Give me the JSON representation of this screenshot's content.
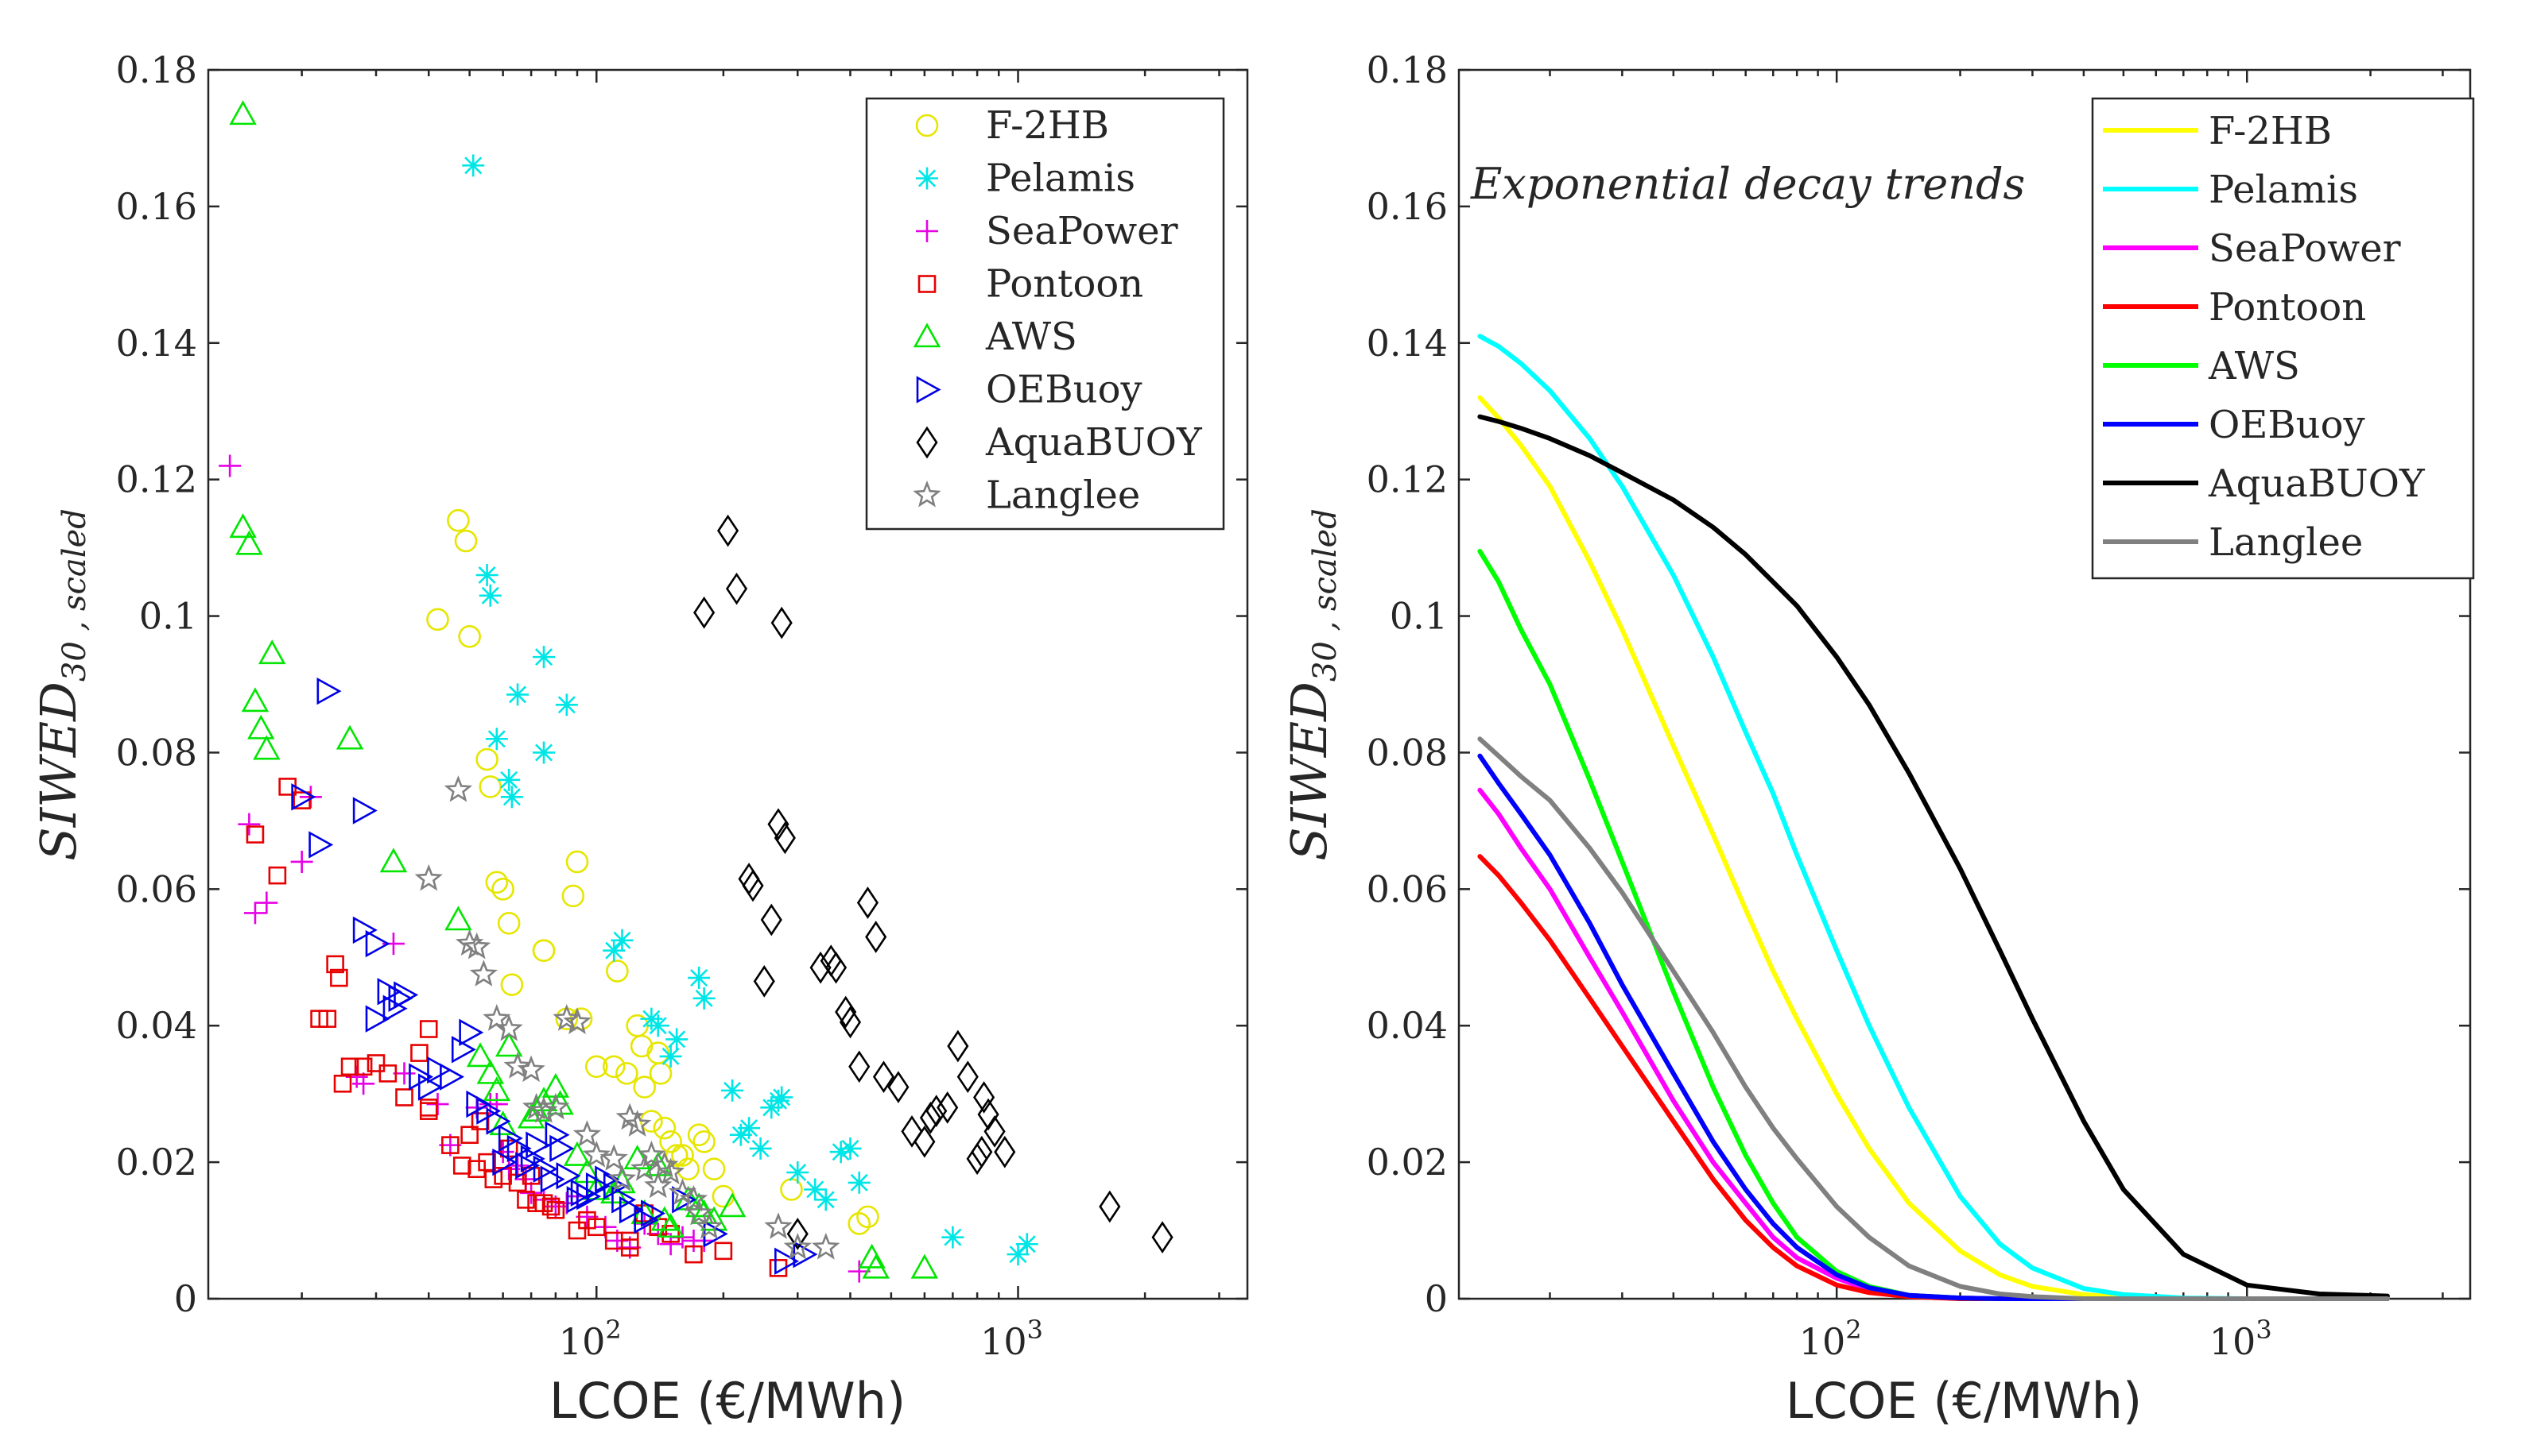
{
  "chart_data": [
    {
      "type": "scatter",
      "xlabel": "LCOE (€/MWh)",
      "ylabel_main": "SIWED",
      "ylabel_sub": "30 , scaled",
      "x_scale": "log",
      "xlim": [
        12,
        3500
      ],
      "ylim": [
        0,
        0.18
      ],
      "yticks": [
        0,
        0.02,
        0.04,
        0.06,
        0.08,
        0.1,
        0.12,
        0.14,
        0.16,
        0.18
      ],
      "ytick_labels": [
        "0",
        "0.02",
        "0.04",
        "0.06",
        "0.08",
        "0.1",
        "0.12",
        "0.14",
        "0.16",
        "0.18"
      ],
      "xticks": [
        100,
        1000
      ],
      "xtick_base": "10",
      "xtick_exponents": [
        "2",
        "3"
      ],
      "legend_position": "top-right",
      "series": [
        {
          "name": "F-2HB",
          "color": "#e6e600",
          "marker": "circle",
          "x": [
            42,
            47,
            49,
            50,
            55,
            56,
            58,
            60,
            62,
            63,
            75,
            75,
            85,
            88,
            90,
            92,
            100,
            110,
            112,
            118,
            125,
            128,
            130,
            135,
            140,
            142,
            145,
            150,
            155,
            160,
            165,
            175,
            180,
            190,
            200,
            290,
            420,
            440
          ],
          "y": [
            0.0995,
            0.114,
            0.111,
            0.097,
            0.079,
            0.075,
            0.061,
            0.06,
            0.055,
            0.046,
            0.051,
            0.051,
            0.041,
            0.059,
            0.064,
            0.041,
            0.034,
            0.034,
            0.048,
            0.033,
            0.04,
            0.037,
            0.031,
            0.026,
            0.036,
            0.033,
            0.025,
            0.023,
            0.021,
            0.021,
            0.019,
            0.024,
            0.023,
            0.019,
            0.015,
            0.016,
            0.011,
            0.012
          ]
        },
        {
          "name": "Pelamis",
          "color": "#00e6e6",
          "marker": "asterisk",
          "x": [
            51,
            55,
            56,
            58,
            62,
            63,
            65,
            75,
            75,
            85,
            110,
            115,
            135,
            140,
            150,
            155,
            175,
            180,
            210,
            220,
            230,
            245,
            260,
            270,
            275,
            300,
            330,
            350,
            380,
            400,
            420,
            700,
            1000,
            1050
          ],
          "y": [
            0.166,
            0.106,
            0.103,
            0.082,
            0.076,
            0.0735,
            0.0885,
            0.094,
            0.08,
            0.087,
            0.051,
            0.0525,
            0.041,
            0.04,
            0.0355,
            0.038,
            0.047,
            0.044,
            0.0305,
            0.024,
            0.025,
            0.022,
            0.028,
            0.029,
            0.0295,
            0.0185,
            0.016,
            0.0145,
            0.0215,
            0.022,
            0.017,
            0.009,
            0.0065,
            0.008
          ]
        },
        {
          "name": "SeaPower",
          "color": "#e600e6",
          "marker": "plus",
          "x": [
            13.5,
            15,
            15.5,
            16.5,
            20,
            21,
            27,
            28,
            33,
            35,
            42,
            45,
            52,
            56,
            58,
            60,
            62,
            65,
            68,
            70,
            75,
            80,
            85,
            90,
            95,
            105,
            112,
            120,
            130,
            140,
            150,
            160,
            170,
            180,
            420
          ],
          "y": [
            0.122,
            0.0695,
            0.0565,
            0.058,
            0.064,
            0.0735,
            0.0325,
            0.0315,
            0.052,
            0.033,
            0.0285,
            0.0225,
            0.028,
            0.0285,
            0.0285,
            0.0215,
            0.019,
            0.0195,
            0.0175,
            0.0155,
            0.0145,
            0.0135,
            0.014,
            0.015,
            0.012,
            0.0105,
            0.0085,
            0.0075,
            0.011,
            0.0095,
            0.008,
            0.009,
            0.0085,
            0.0085,
            0.004
          ]
        },
        {
          "name": "Pontoon",
          "color": "#e60000",
          "marker": "square",
          "x": [
            15.5,
            17.5,
            18.5,
            20,
            22,
            23,
            24,
            24.5,
            25,
            26,
            28,
            30,
            32,
            35,
            38,
            40,
            40,
            40,
            45,
            48,
            50,
            52,
            53,
            55,
            57,
            60,
            62,
            65,
            68,
            70,
            72,
            75,
            78,
            80,
            90,
            95,
            100,
            110,
            120,
            120,
            130,
            140,
            150,
            170,
            200,
            270
          ],
          "y": [
            0.068,
            0.062,
            0.075,
            0.073,
            0.041,
            0.041,
            0.049,
            0.047,
            0.0315,
            0.034,
            0.034,
            0.0345,
            0.033,
            0.0295,
            0.036,
            0.0395,
            0.028,
            0.0275,
            0.0225,
            0.0195,
            0.024,
            0.019,
            0.026,
            0.02,
            0.0175,
            0.018,
            0.022,
            0.017,
            0.0145,
            0.018,
            0.014,
            0.014,
            0.0135,
            0.013,
            0.01,
            0.0115,
            0.0105,
            0.0085,
            0.0085,
            0.0075,
            0.0125,
            0.0105,
            0.0095,
            0.0065,
            0.007,
            0.0045
          ]
        },
        {
          "name": "AWS",
          "color": "#00e600",
          "marker": "triangle-up",
          "x": [
            14.5,
            14.5,
            15,
            15.5,
            16,
            16.5,
            17,
            26,
            33,
            47,
            53,
            56,
            58,
            60,
            62,
            70,
            72,
            75,
            80,
            82,
            90,
            95,
            100,
            110,
            115,
            125,
            130,
            140,
            145,
            150,
            165,
            175,
            180,
            190,
            210,
            450,
            460,
            600
          ],
          "y": [
            0.1735,
            0.113,
            0.1105,
            0.0875,
            0.0835,
            0.0805,
            0.0945,
            0.082,
            0.064,
            0.0555,
            0.0355,
            0.033,
            0.0305,
            0.0255,
            0.037,
            0.0265,
            0.0275,
            0.029,
            0.031,
            0.0285,
            0.021,
            0.0185,
            0.016,
            0.0155,
            0.017,
            0.0205,
            0.0125,
            0.0195,
            0.0115,
            0.0105,
            0.0145,
            0.0135,
            0.0125,
            0.0115,
            0.0135,
            0.006,
            0.0045,
            0.0045
          ]
        },
        {
          "name": "OEBuoy",
          "color": "#0000e6",
          "marker": "triangle-right",
          "x": [
            20,
            22,
            23,
            28,
            28,
            30,
            30,
            32,
            33,
            34,
            35,
            38,
            40,
            42,
            45,
            48,
            50,
            52,
            55,
            58,
            60,
            62,
            65,
            68,
            70,
            72,
            75,
            78,
            80,
            82,
            85,
            90,
            92,
            95,
            100,
            105,
            110,
            115,
            120,
            130,
            135,
            160,
            190,
            280,
            310
          ],
          "y": [
            0.0735,
            0.0665,
            0.089,
            0.0715,
            0.054,
            0.052,
            0.041,
            0.045,
            0.0425,
            0.044,
            0.0445,
            0.0325,
            0.031,
            0.0335,
            0.0325,
            0.0365,
            0.039,
            0.0285,
            0.0275,
            0.026,
            0.02,
            0.0235,
            0.022,
            0.0195,
            0.0205,
            0.0225,
            0.019,
            0.0175,
            0.024,
            0.022,
            0.018,
            0.0145,
            0.0155,
            0.015,
            0.0165,
            0.0175,
            0.0165,
            0.0145,
            0.013,
            0.0115,
            0.0125,
            0.0145,
            0.0095,
            0.0055,
            0.0065
          ]
        },
        {
          "name": "AquaBUOY",
          "color": "#000000",
          "marker": "diamond",
          "x": [
            180,
            205,
            215,
            230,
            235,
            250,
            260,
            270,
            275,
            280,
            300,
            340,
            360,
            370,
            390,
            400,
            420,
            440,
            460,
            480,
            520,
            560,
            600,
            620,
            640,
            680,
            720,
            760,
            800,
            820,
            830,
            850,
            880,
            930,
            1650,
            2200
          ],
          "y": [
            0.1005,
            0.1125,
            0.104,
            0.0615,
            0.0605,
            0.0465,
            0.0555,
            0.0695,
            0.099,
            0.0675,
            0.0095,
            0.0485,
            0.0495,
            0.0485,
            0.042,
            0.0405,
            0.034,
            0.058,
            0.053,
            0.0325,
            0.031,
            0.0245,
            0.023,
            0.0265,
            0.0275,
            0.028,
            0.037,
            0.0325,
            0.0205,
            0.0215,
            0.0295,
            0.027,
            0.0245,
            0.0215,
            0.0135,
            0.009
          ]
        },
        {
          "name": "Langlee",
          "color": "#808080",
          "marker": "star",
          "x": [
            40,
            47,
            50,
            52,
            54,
            58,
            62,
            65,
            70,
            72,
            75,
            80,
            85,
            90,
            95,
            100,
            110,
            115,
            120,
            125,
            130,
            135,
            140,
            145,
            150,
            160,
            170,
            175,
            185,
            270,
            300,
            350
          ],
          "y": [
            0.0615,
            0.0745,
            0.052,
            0.0515,
            0.0475,
            0.041,
            0.0395,
            0.034,
            0.0335,
            0.028,
            0.0275,
            0.028,
            0.041,
            0.0405,
            0.024,
            0.021,
            0.0205,
            0.0175,
            0.0265,
            0.0255,
            0.019,
            0.021,
            0.0165,
            0.0195,
            0.0185,
            0.0155,
            0.0145,
            0.0125,
            0.0105,
            0.0105,
            0.0075,
            0.0075
          ]
        }
      ]
    },
    {
      "type": "line",
      "xlabel": "LCOE (€/MWh)",
      "ylabel_main": "SIWED",
      "ylabel_sub": "30 , scaled",
      "annotation": "Exponential decay trends",
      "x_scale": "log",
      "xlim": [
        12,
        3500
      ],
      "ylim": [
        0,
        0.18
      ],
      "yticks": [
        0,
        0.02,
        0.04,
        0.06,
        0.08,
        0.1,
        0.12,
        0.14,
        0.16,
        0.18
      ],
      "ytick_labels": [
        "0",
        "0.02",
        "0.04",
        "0.06",
        "0.08",
        "0.1",
        "0.12",
        "0.14",
        "0.16",
        "0.18"
      ],
      "xticks": [
        100,
        1000
      ],
      "xtick_base": "10",
      "xtick_exponents": [
        "2",
        "3"
      ],
      "legend_position": "top-right",
      "x": [
        13.5,
        15,
        17,
        20,
        25,
        30,
        40,
        50,
        60,
        70,
        80,
        100,
        120,
        150,
        200,
        250,
        300,
        400,
        500,
        700,
        1000,
        1500,
        2200
      ],
      "series": [
        {
          "name": "F-2HB",
          "color": "#ffff00",
          "values": [
            0.132,
            0.129,
            0.125,
            0.119,
            0.108,
            0.098,
            0.081,
            0.068,
            0.057,
            0.048,
            0.041,
            0.03,
            0.022,
            0.014,
            0.007,
            0.0035,
            0.0018,
            0.0006,
            0.0002,
            0,
            0,
            0,
            0
          ]
        },
        {
          "name": "Pelamis",
          "color": "#00ffff",
          "values": [
            0.141,
            0.1395,
            0.137,
            0.133,
            0.126,
            0.119,
            0.106,
            0.094,
            0.083,
            0.074,
            0.065,
            0.051,
            0.04,
            0.028,
            0.015,
            0.008,
            0.0045,
            0.0015,
            0.0006,
            0.0001,
            0,
            0,
            0
          ]
        },
        {
          "name": "SeaPower",
          "color": "#ff00ff",
          "values": [
            0.0745,
            0.071,
            0.066,
            0.06,
            0.05,
            0.042,
            0.029,
            0.02,
            0.014,
            0.009,
            0.006,
            0.003,
            0.0013,
            0.0004,
            0.0001,
            0,
            0,
            0,
            0,
            0,
            0,
            0,
            0
          ]
        },
        {
          "name": "Pontoon",
          "color": "#ff0000",
          "values": [
            0.0648,
            0.062,
            0.058,
            0.0525,
            0.044,
            0.037,
            0.026,
            0.0175,
            0.0115,
            0.0075,
            0.0048,
            0.002,
            0.0009,
            0.0003,
            0,
            0,
            0,
            0,
            0,
            0,
            0,
            0,
            0
          ]
        },
        {
          "name": "AWS",
          "color": "#00ff00",
          "values": [
            0.1095,
            0.105,
            0.098,
            0.09,
            0.076,
            0.064,
            0.045,
            0.031,
            0.021,
            0.014,
            0.009,
            0.004,
            0.0018,
            0.0005,
            0.0001,
            0,
            0,
            0,
            0,
            0,
            0,
            0,
            0
          ]
        },
        {
          "name": "OEBuoy",
          "color": "#0000ff",
          "values": [
            0.0795,
            0.0755,
            0.071,
            0.065,
            0.055,
            0.046,
            0.033,
            0.023,
            0.016,
            0.011,
            0.0075,
            0.0035,
            0.0016,
            0.0005,
            0.0001,
            0,
            0,
            0,
            0,
            0,
            0,
            0,
            0
          ]
        },
        {
          "name": "AquaBUOY",
          "color": "#000000",
          "values": [
            0.1292,
            0.1285,
            0.1275,
            0.126,
            0.1235,
            0.121,
            0.117,
            0.113,
            0.109,
            0.105,
            0.1015,
            0.094,
            0.087,
            0.077,
            0.063,
            0.051,
            0.041,
            0.026,
            0.016,
            0.0065,
            0.002,
            0.0007,
            0.0004
          ]
        },
        {
          "name": "Langlee",
          "color": "#808080",
          "values": [
            0.082,
            0.0795,
            0.0765,
            0.073,
            0.066,
            0.0595,
            0.048,
            0.039,
            0.031,
            0.025,
            0.0205,
            0.0135,
            0.009,
            0.0048,
            0.0018,
            0.0007,
            0.0003,
            0,
            0,
            0,
            0,
            0,
            0
          ]
        }
      ]
    }
  ]
}
